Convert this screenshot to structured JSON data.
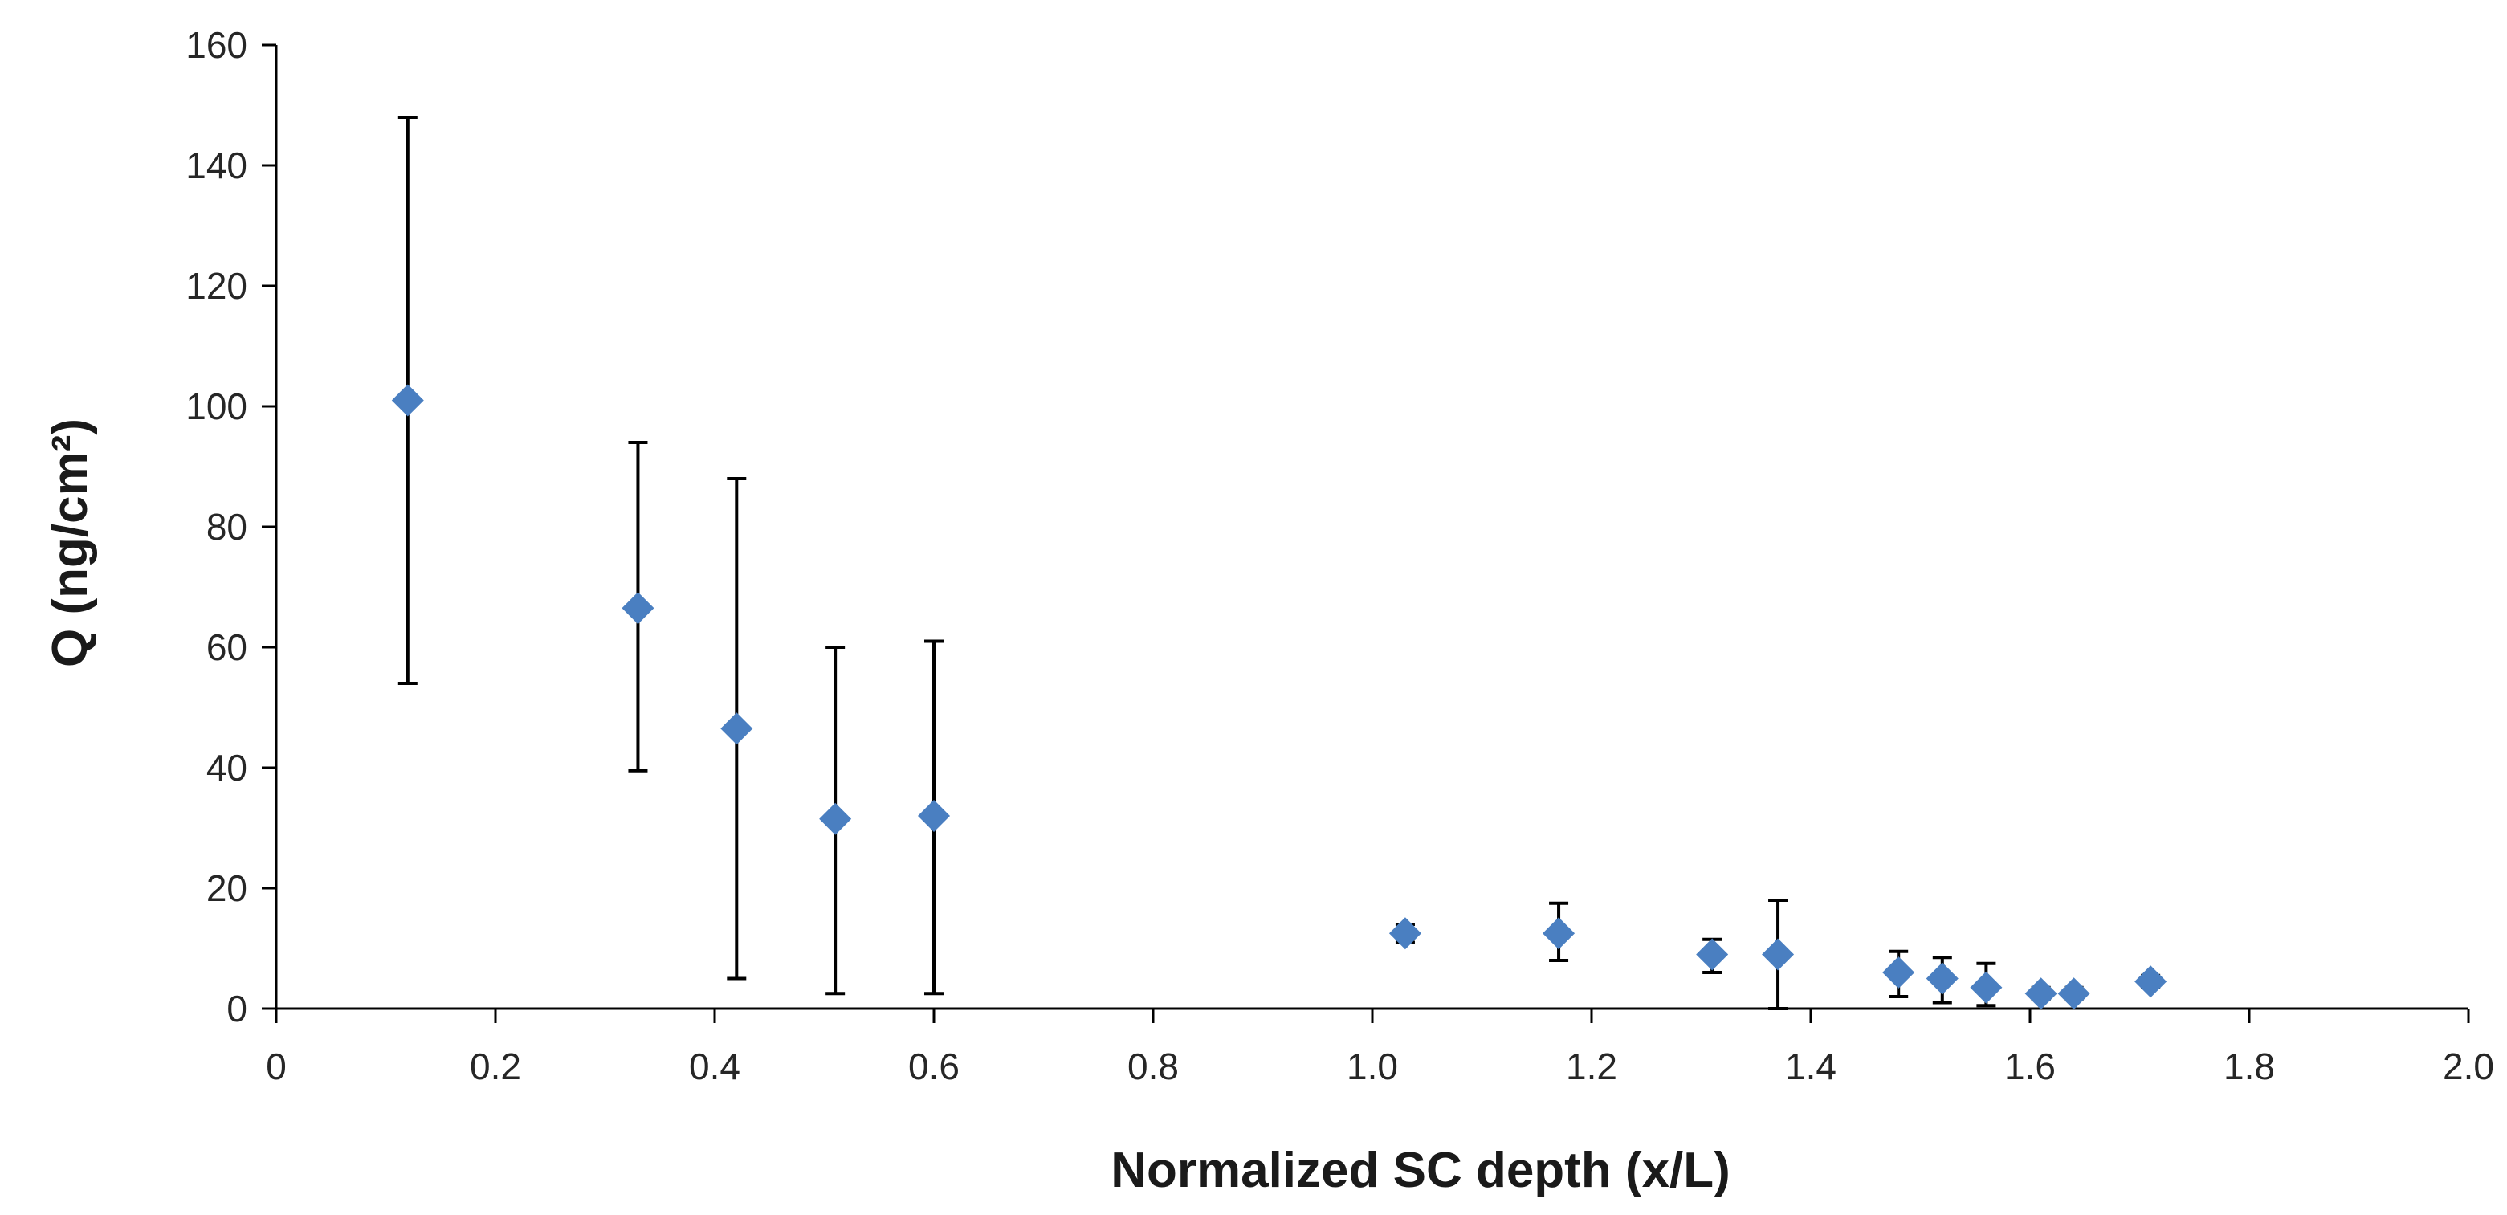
{
  "chart_data": {
    "type": "scatter",
    "title": "",
    "xlabel": "Normalized SC depth (x/L)",
    "ylabel": "Q (ng/cm²)",
    "xlim": [
      0,
      2.0
    ],
    "ylim": [
      0,
      160
    ],
    "x_ticks": [
      0,
      0.2,
      0.4,
      0.6,
      0.8,
      1.0,
      1.2,
      1.4,
      1.6,
      1.8,
      2.0
    ],
    "x_tick_labels": [
      "0",
      "0.2",
      "0.4",
      "0.6",
      "0.8",
      "1.0",
      "1.2",
      "1.4",
      "1.6",
      "1.8",
      "2.0"
    ],
    "y_ticks": [
      0,
      20,
      40,
      60,
      80,
      100,
      120,
      140,
      160
    ],
    "y_tick_labels": [
      "0",
      "20",
      "40",
      "60",
      "80",
      "100",
      "120",
      "140",
      "160"
    ],
    "grid": false,
    "legend": "none",
    "marker_color": "#4a7fc1",
    "series": [
      {
        "name": "Q",
        "points": [
          {
            "x": 0.12,
            "y": 101,
            "err_low": 54,
            "err_high": 148
          },
          {
            "x": 0.33,
            "y": 66.5,
            "err_low": 39.5,
            "err_high": 94
          },
          {
            "x": 0.42,
            "y": 46.5,
            "err_low": 5,
            "err_high": 88
          },
          {
            "x": 0.51,
            "y": 31.5,
            "err_low": 2.5,
            "err_high": 60
          },
          {
            "x": 0.6,
            "y": 32,
            "err_low": 2.5,
            "err_high": 61
          },
          {
            "x": 1.03,
            "y": 12.5,
            "err_low": 11,
            "err_high": 14
          },
          {
            "x": 1.17,
            "y": 12.5,
            "err_low": 8,
            "err_high": 17.5
          },
          {
            "x": 1.31,
            "y": 9,
            "err_low": 6,
            "err_high": 11.5
          },
          {
            "x": 1.37,
            "y": 9,
            "err_low": 0,
            "err_high": 18
          },
          {
            "x": 1.48,
            "y": 6,
            "err_low": 2,
            "err_high": 9.5
          },
          {
            "x": 1.52,
            "y": 5,
            "err_low": 1,
            "err_high": 8.5
          },
          {
            "x": 1.56,
            "y": 3.5,
            "err_low": 0.5,
            "err_high": 7.5
          },
          {
            "x": 1.61,
            "y": 2.5,
            "err_low": 1.5,
            "err_high": 3.5
          },
          {
            "x": 1.64,
            "y": 2.5,
            "err_low": 1.5,
            "err_high": 3.5
          },
          {
            "x": 1.71,
            "y": 4.5,
            "err_low": 3.5,
            "err_high": 5.5
          }
        ]
      }
    ]
  }
}
